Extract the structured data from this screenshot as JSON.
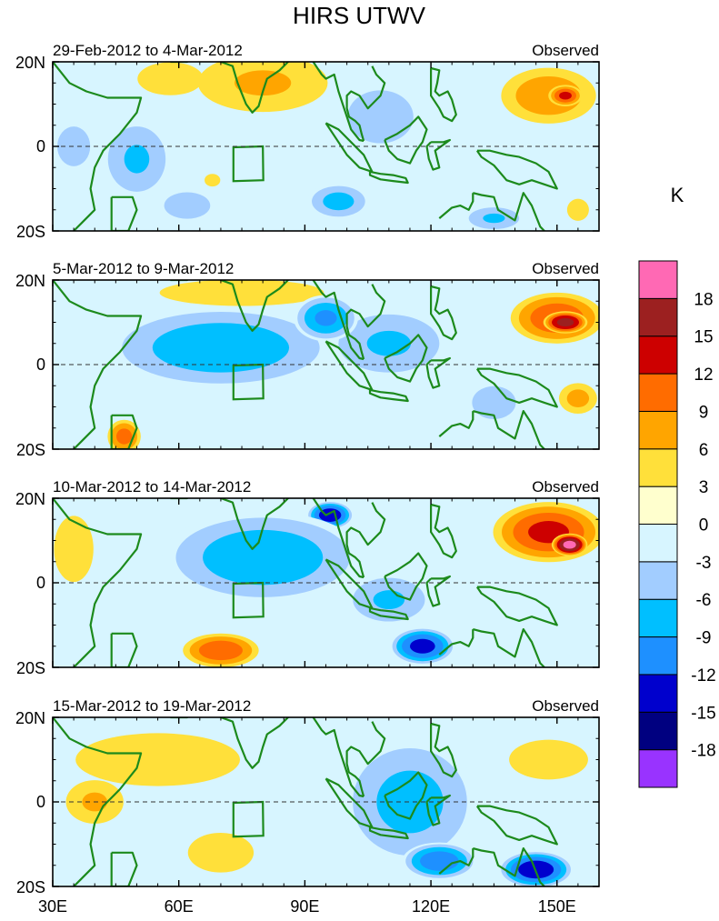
{
  "chart_data": {
    "type": "heatmap",
    "title": "HIRS UTWV",
    "variable_unit": "K",
    "x_ticks": [
      "30E",
      "60E",
      "90E",
      "120E",
      "150E"
    ],
    "x_tick_values": [
      30,
      60,
      90,
      120,
      150
    ],
    "x_range": [
      30,
      160
    ],
    "y_range": [
      -20,
      20
    ],
    "panels": [
      {
        "date_range": "29-Feb-2012 to 4-Mar-2012",
        "tag": "Observed",
        "y_ticks": [
          "20N",
          "0",
          "20S"
        ],
        "blobs": [
          {
            "lon": 80,
            "lat": 15,
            "value": 6,
            "rlon": 18,
            "rlat": 8
          },
          {
            "lon": 58,
            "lat": 16,
            "value": 5,
            "rlon": 10,
            "rlat": 5
          },
          {
            "lon": 148,
            "lat": 12,
            "value": 8,
            "rlon": 12,
            "rlat": 7
          },
          {
            "lon": 152,
            "lat": 12,
            "value": 12,
            "rlon": 4,
            "rlat": 2.5
          },
          {
            "lon": 108,
            "lat": 7,
            "value": -5,
            "rlon": 10,
            "rlat": 8
          },
          {
            "lon": 50,
            "lat": -3,
            "value": -6,
            "rlon": 8,
            "rlat": 9
          },
          {
            "lon": 35,
            "lat": 0,
            "value": -5,
            "rlon": 5,
            "rlat": 6
          },
          {
            "lon": 62,
            "lat": -14,
            "value": -5,
            "rlon": 7,
            "rlat": 4
          },
          {
            "lon": 98,
            "lat": -13,
            "value": -7,
            "rlon": 7,
            "rlat": 4
          },
          {
            "lon": 135,
            "lat": -17,
            "value": -6,
            "rlon": 7,
            "rlat": 3
          },
          {
            "lon": 68,
            "lat": -8,
            "value": 3,
            "rlon": 5,
            "rlat": 4
          },
          {
            "lon": 155,
            "lat": -15,
            "value": 4,
            "rlon": 4,
            "rlat": 4
          }
        ]
      },
      {
        "date_range": "5-Mar-2012 to 9-Mar-2012",
        "tag": "Observed",
        "y_ticks": [
          "20N",
          "0",
          "20S"
        ],
        "blobs": [
          {
            "lon": 75,
            "lat": 17,
            "value": 5,
            "rlon": 25,
            "rlat": 4
          },
          {
            "lon": 150,
            "lat": 11,
            "value": 11,
            "rlon": 11,
            "rlat": 6
          },
          {
            "lon": 152,
            "lat": 10,
            "value": 16,
            "rlon": 5,
            "rlat": 2.5
          },
          {
            "lon": 70,
            "lat": 4,
            "value": -8,
            "rlon": 25,
            "rlat": 9
          },
          {
            "lon": 110,
            "lat": 5,
            "value": -6,
            "rlon": 14,
            "rlat": 8
          },
          {
            "lon": 95,
            "lat": 11,
            "value": -9,
            "rlon": 7,
            "rlat": 5
          },
          {
            "lon": 47,
            "lat": -17,
            "value": 10,
            "rlon": 4,
            "rlat": 4
          },
          {
            "lon": 155,
            "lat": -8,
            "value": 7,
            "rlon": 5,
            "rlat": 4
          },
          {
            "lon": 135,
            "lat": -9,
            "value": -4,
            "rlon": 8,
            "rlat": 6
          }
        ]
      },
      {
        "date_range": "10-Mar-2012 to 14-Mar-2012",
        "tag": "Observed",
        "y_ticks": [
          "20N",
          "0",
          "20S"
        ],
        "blobs": [
          {
            "lon": 148,
            "lat": 12,
            "value": 12,
            "rlon": 13,
            "rlat": 7
          },
          {
            "lon": 153,
            "lat": 9,
            "value": 19,
            "rlon": 4,
            "rlat": 2.5
          },
          {
            "lon": 96,
            "lat": 16,
            "value": -14,
            "rlon": 5,
            "rlat": 3
          },
          {
            "lon": 80,
            "lat": 6,
            "value": -8,
            "rlon": 22,
            "rlat": 10
          },
          {
            "lon": 70,
            "lat": -16,
            "value": 11,
            "rlon": 9,
            "rlat": 4
          },
          {
            "lon": 118,
            "lat": -15,
            "value": -13,
            "rlon": 7,
            "rlat": 4
          },
          {
            "lon": 35,
            "lat": 8,
            "value": 5,
            "rlon": 6,
            "rlat": 10
          },
          {
            "lon": 110,
            "lat": -4,
            "value": -6,
            "rlon": 10,
            "rlat": 6
          }
        ]
      },
      {
        "date_range": "15-Mar-2012 to 19-Mar-2012",
        "tag": "Observed",
        "y_ticks": [
          "20N",
          "0",
          "20S"
        ],
        "blobs": [
          {
            "lon": 55,
            "lat": 10,
            "value": 5,
            "rlon": 25,
            "rlat": 8
          },
          {
            "lon": 40,
            "lat": 0,
            "value": 6,
            "rlon": 8,
            "rlat": 6
          },
          {
            "lon": 148,
            "lat": 10,
            "value": 5,
            "rlon": 12,
            "rlat": 6
          },
          {
            "lon": 70,
            "lat": -12,
            "value": 5,
            "rlon": 10,
            "rlat": 6
          },
          {
            "lon": 115,
            "lat": 0,
            "value": -7,
            "rlon": 15,
            "rlat": 14
          },
          {
            "lon": 145,
            "lat": -16,
            "value": -14,
            "rlon": 8,
            "rlat": 4
          },
          {
            "lon": 122,
            "lat": -14,
            "value": -11,
            "rlon": 8,
            "rlat": 4
          }
        ]
      }
    ],
    "colorbar": {
      "label": "K",
      "colors": [
        "#9933ff",
        "#000080",
        "#0000cd",
        "#1e90ff",
        "#00bfff",
        "#a2cdff",
        "#d7f5ff",
        "#ffffce",
        "#ffe03a",
        "#ffa500",
        "#ff6c00",
        "#cd0000",
        "#9c2020",
        "#ff69b4"
      ],
      "tick_labels": [
        "-18",
        "-15",
        "-12",
        "-9",
        "-6",
        "-3",
        "0",
        "3",
        "6",
        "9",
        "12",
        "15",
        "18"
      ],
      "levels": [
        -18,
        -15,
        -12,
        -9,
        -6,
        -3,
        0,
        3,
        6,
        9,
        12,
        15,
        18
      ]
    }
  }
}
